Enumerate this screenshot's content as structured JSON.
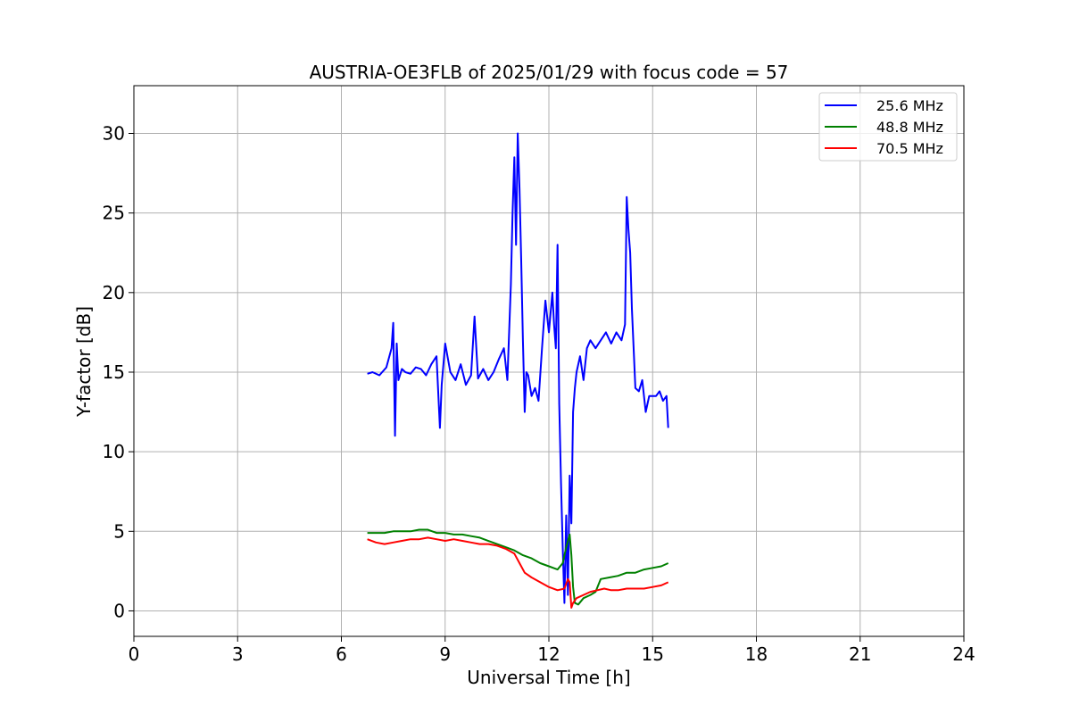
{
  "chart_data": {
    "type": "line",
    "title": "AUSTRIA-OE3FLB of 2025/01/29 with focus code = 57",
    "xlabel": "Universal Time [h]",
    "ylabel": "Y-factor [dB]",
    "xlim": [
      0,
      24
    ],
    "ylim": [
      -1.6,
      33
    ],
    "xticks": [
      0,
      3,
      6,
      9,
      12,
      15,
      18,
      21,
      24
    ],
    "yticks": [
      0,
      5,
      10,
      15,
      20,
      25,
      30
    ],
    "grid": true,
    "legend_position": "top-right",
    "series": [
      {
        "name": "25.6 MHz",
        "color": "#0000ff",
        "x": [
          6.75,
          6.9,
          7.1,
          7.3,
          7.45,
          7.5,
          7.55,
          7.6,
          7.65,
          7.75,
          7.85,
          8.0,
          8.15,
          8.3,
          8.45,
          8.6,
          8.75,
          8.85,
          8.9,
          9.0,
          9.15,
          9.3,
          9.45,
          9.6,
          9.75,
          9.85,
          9.95,
          10.1,
          10.25,
          10.4,
          10.55,
          10.7,
          10.8,
          10.9,
          10.95,
          11.0,
          11.05,
          11.1,
          11.15,
          11.2,
          11.25,
          11.3,
          11.35,
          11.4,
          11.5,
          11.6,
          11.7,
          11.8,
          11.9,
          12.0,
          12.1,
          12.15,
          12.2,
          12.25,
          12.3,
          12.35,
          12.4,
          12.45,
          12.5,
          12.55,
          12.6,
          12.65,
          12.7,
          12.75,
          12.8,
          12.9,
          13.0,
          13.1,
          13.2,
          13.35,
          13.5,
          13.65,
          13.8,
          13.95,
          14.1,
          14.2,
          14.25,
          14.3,
          14.35,
          14.4,
          14.5,
          14.6,
          14.7,
          14.8,
          14.9,
          15.0,
          15.1,
          15.2,
          15.3,
          15.4,
          15.45
        ],
        "y": [
          14.9,
          15.0,
          14.8,
          15.3,
          16.5,
          18.1,
          11.0,
          16.8,
          14.5,
          15.2,
          15.0,
          14.9,
          15.3,
          15.2,
          14.8,
          15.5,
          16.0,
          11.5,
          14.2,
          16.8,
          15.0,
          14.5,
          15.5,
          14.2,
          14.8,
          18.5,
          14.6,
          15.2,
          14.5,
          15.0,
          15.8,
          16.5,
          14.5,
          20.5,
          25.0,
          28.5,
          23.0,
          30.0,
          26.5,
          22.0,
          17.0,
          12.5,
          15.0,
          14.8,
          13.5,
          14.0,
          13.2,
          16.5,
          19.5,
          17.5,
          20.0,
          18.0,
          16.5,
          23.0,
          13.0,
          8.0,
          4.0,
          0.5,
          6.0,
          1.0,
          8.5,
          5.5,
          12.5,
          14.0,
          15.0,
          16.0,
          14.5,
          16.5,
          17.0,
          16.5,
          17.0,
          17.5,
          16.8,
          17.5,
          17.0,
          18.0,
          26.0,
          24.0,
          22.5,
          19.0,
          14.0,
          13.8,
          14.5,
          12.5,
          13.5,
          13.5,
          13.5,
          13.8,
          13.2,
          13.5,
          11.5
        ]
      },
      {
        "name": "48.8 MHz",
        "color": "#008000",
        "x": [
          6.75,
          7.0,
          7.25,
          7.5,
          7.75,
          8.0,
          8.25,
          8.5,
          8.75,
          9.0,
          9.25,
          9.5,
          9.75,
          10.0,
          10.25,
          10.5,
          10.75,
          11.0,
          11.25,
          11.5,
          11.75,
          12.0,
          12.25,
          12.4,
          12.5,
          12.6,
          12.65,
          12.7,
          12.75,
          12.85,
          13.0,
          13.2,
          13.35,
          13.5,
          13.75,
          14.0,
          14.25,
          14.5,
          14.75,
          15.0,
          15.25,
          15.45
        ],
        "y": [
          4.9,
          4.9,
          4.9,
          5.0,
          5.0,
          5.0,
          5.1,
          5.1,
          4.9,
          4.9,
          4.8,
          4.8,
          4.7,
          4.6,
          4.4,
          4.2,
          4.0,
          3.8,
          3.5,
          3.3,
          3.0,
          2.8,
          2.6,
          3.0,
          4.0,
          4.8,
          3.5,
          1.5,
          0.5,
          0.4,
          0.8,
          1.0,
          1.2,
          2.0,
          2.1,
          2.2,
          2.4,
          2.4,
          2.6,
          2.7,
          2.8,
          3.0
        ]
      },
      {
        "name": "70.5 MHz",
        "color": "#ff0000",
        "x": [
          6.75,
          7.0,
          7.25,
          7.5,
          7.75,
          8.0,
          8.25,
          8.5,
          8.75,
          9.0,
          9.25,
          9.5,
          9.75,
          10.0,
          10.25,
          10.5,
          10.75,
          11.0,
          11.15,
          11.3,
          11.5,
          11.75,
          12.0,
          12.25,
          12.45,
          12.55,
          12.6,
          12.65,
          12.7,
          12.8,
          13.0,
          13.2,
          13.4,
          13.6,
          13.8,
          14.0,
          14.25,
          14.5,
          14.75,
          15.0,
          15.25,
          15.45
        ],
        "y": [
          4.5,
          4.3,
          4.2,
          4.3,
          4.4,
          4.5,
          4.5,
          4.6,
          4.5,
          4.4,
          4.5,
          4.4,
          4.3,
          4.2,
          4.2,
          4.1,
          3.9,
          3.6,
          3.0,
          2.4,
          2.1,
          1.8,
          1.5,
          1.3,
          1.4,
          2.0,
          1.8,
          0.2,
          0.5,
          0.8,
          1.0,
          1.2,
          1.3,
          1.4,
          1.3,
          1.3,
          1.4,
          1.4,
          1.4,
          1.5,
          1.6,
          1.8
        ]
      }
    ]
  }
}
